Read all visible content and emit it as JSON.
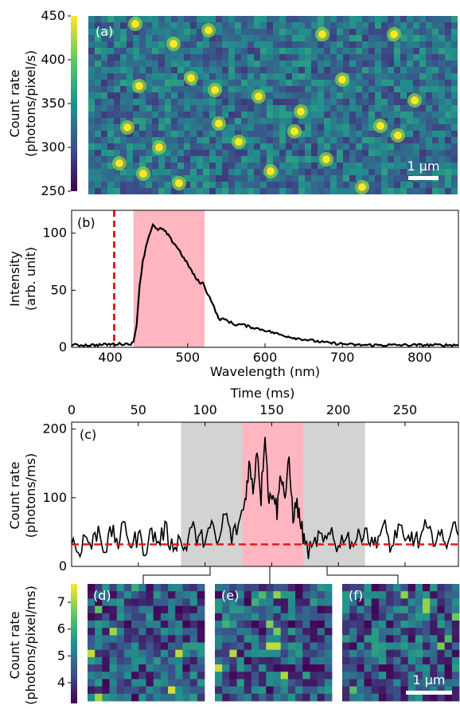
{
  "panel_labels": {
    "a": "(a)",
    "b": "(b)",
    "c": "(c)",
    "d": "(d)",
    "e": "(e)",
    "f": "(f)"
  },
  "scale_bars": {
    "a": "1 µm",
    "f": "1 µm"
  },
  "colorbar_a": {
    "label_line1": "Count rate",
    "label_line2": "(photons/pixel/s)",
    "ticks": [
      "450",
      "400",
      "350",
      "300",
      "250"
    ]
  },
  "colorbar_d": {
    "label_line1": "Count rate",
    "label_line2": "(photons/pixel/ms)",
    "ticks": [
      "7",
      "6",
      "5",
      "4"
    ]
  },
  "colors": {
    "viridis_dark": "#440154",
    "viridis_yellow": "#fde725",
    "pink_band": "#ffb6c1",
    "gray_band": "#d3d3d3",
    "red_dashed": "#e31a1c"
  },
  "chart_data": [
    {
      "type": "heatmap",
      "panel": "(a)",
      "colorbar_label": "Count rate (photons/pixel/s)",
      "colorbar_range": [
        250,
        450
      ],
      "scale_bar": "1 µm"
    },
    {
      "type": "line",
      "panel": "(b)",
      "xlabel": "Wavelength (nm)",
      "ylabel": "Intensity (arb. unit)",
      "xlim": [
        350,
        850
      ],
      "ylim": [
        0,
        120
      ],
      "xticks": [
        "400",
        "500",
        "600",
        "700",
        "800"
      ],
      "yticks": [
        "0",
        "50",
        "100"
      ],
      "dashed_vertical_x": 405,
      "highlight_band_x": [
        430,
        522
      ],
      "x": [
        350,
        380,
        410,
        425,
        430,
        434,
        438,
        442,
        446,
        450,
        455,
        460,
        465,
        470,
        475,
        480,
        485,
        490,
        495,
        500,
        505,
        510,
        515,
        520,
        525,
        530,
        540,
        550,
        560,
        570,
        580,
        600,
        620,
        640,
        660,
        680,
        700,
        720,
        740,
        760,
        780,
        800,
        850
      ],
      "y": [
        2,
        2,
        3,
        3,
        4,
        20,
        55,
        75,
        88,
        98,
        107,
        103,
        104,
        102,
        98,
        93,
        89,
        84,
        78,
        73,
        67,
        61,
        57,
        56,
        48,
        42,
        25,
        24,
        20,
        20,
        18,
        15,
        11,
        8,
        6,
        4,
        3,
        2,
        2,
        2,
        2,
        2,
        2
      ]
    },
    {
      "type": "line",
      "panel": "(c)",
      "xlabel": "Time (ms)",
      "ylabel": "Count rate (photons/ms)",
      "xlim": [
        0,
        290
      ],
      "ylim": [
        0,
        210
      ],
      "xticks": [
        "0",
        "50",
        "100",
        "150",
        "200",
        "250"
      ],
      "yticks": [
        "0",
        "100",
        "200"
      ],
      "baseline_dashed_y": 32,
      "gray_bands": [
        [
          82,
          128
        ],
        [
          174,
          220
        ]
      ],
      "pink_band": [
        128,
        174
      ],
      "x": [
        0,
        5,
        10,
        15,
        20,
        25,
        30,
        35,
        40,
        45,
        50,
        55,
        60,
        65,
        70,
        75,
        80,
        85,
        90,
        95,
        100,
        105,
        110,
        115,
        120,
        125,
        130,
        133,
        136,
        139,
        142,
        145,
        148,
        151,
        154,
        157,
        160,
        163,
        166,
        169,
        172,
        175,
        180,
        185,
        190,
        195,
        200,
        205,
        210,
        215,
        220,
        225,
        230,
        235,
        240,
        245,
        250,
        255,
        260,
        265,
        270,
        275,
        280,
        285,
        290
      ],
      "y": [
        40,
        20,
        45,
        30,
        55,
        25,
        50,
        35,
        60,
        30,
        45,
        25,
        50,
        35,
        55,
        30,
        40,
        25,
        60,
        35,
        45,
        55,
        30,
        80,
        40,
        60,
        95,
        150,
        110,
        175,
        100,
        200,
        90,
        115,
        80,
        140,
        100,
        150,
        75,
        90,
        60,
        30,
        20,
        45,
        30,
        55,
        25,
        50,
        35,
        40,
        60,
        30,
        45,
        55,
        25,
        60,
        30,
        45,
        35,
        55,
        40,
        50,
        30,
        60,
        45
      ]
    },
    {
      "type": "heatmap",
      "panel": "(d)",
      "colorbar_label": "Count rate (photons/pixel/ms)",
      "colorbar_range": [
        3.3,
        7.7
      ]
    },
    {
      "type": "heatmap",
      "panel": "(e)",
      "colorbar_label": "Count rate (photons/pixel/ms)",
      "colorbar_range": [
        3.3,
        7.7
      ]
    },
    {
      "type": "heatmap",
      "panel": "(f)",
      "colorbar_label": "Count rate (photons/pixel/ms)",
      "colorbar_range": [
        3.3,
        7.7
      ],
      "scale_bar": "1 µm"
    }
  ]
}
